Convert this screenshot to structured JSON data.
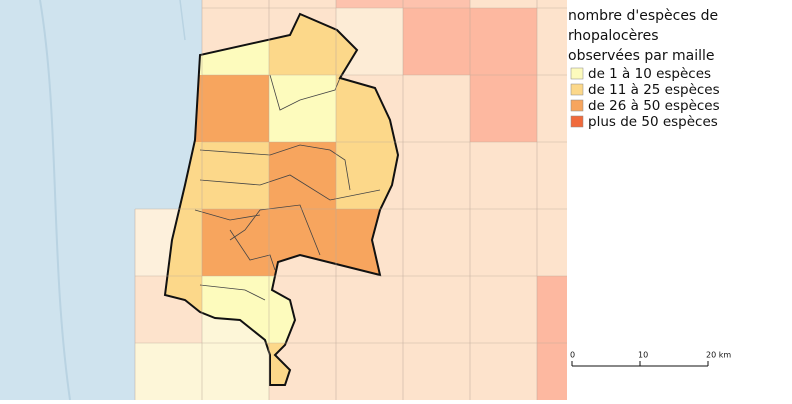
{
  "legend": {
    "title": [
      "nombre d'espèces de",
      "rhopalocères",
      "observées par maille"
    ],
    "items": [
      {
        "label": "de 1 à 10 espèces",
        "color": "#fdfbbd"
      },
      {
        "label": "de 11 à 25 espèces",
        "color": "#fcd88a"
      },
      {
        "label": "de 26 à 50 espèces",
        "color": "#f7a55e"
      },
      {
        "label": "plus de 50 espèces",
        "color": "#f06a3c"
      }
    ]
  },
  "scale": {
    "max": 20,
    "ticks": [
      {
        "value": 0,
        "label": "0"
      },
      {
        "value": 10,
        "label": "10"
      },
      {
        "value": 20,
        "label": "20 km"
      }
    ]
  }
}
